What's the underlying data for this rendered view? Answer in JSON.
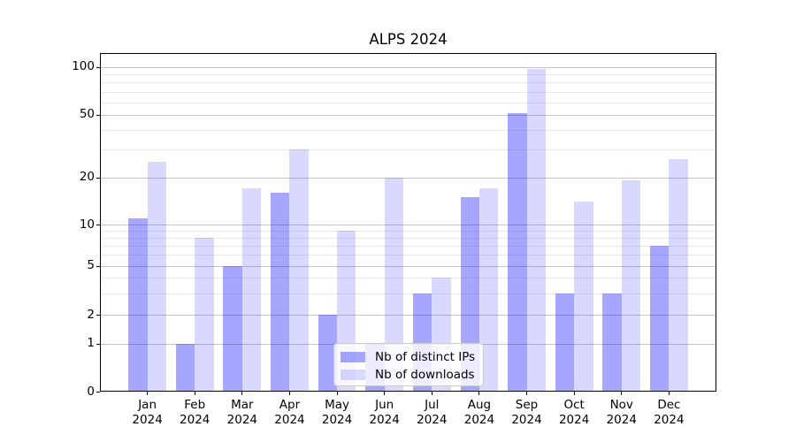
{
  "title": "ALPS 2024",
  "chart_data": {
    "type": "bar",
    "title": "ALPS 2024",
    "yscale": "symlog",
    "grid": "on",
    "legend_position": "lower center",
    "x_tick_months": [
      "Jan",
      "Feb",
      "Mar",
      "Apr",
      "May",
      "Jun",
      "Jul",
      "Aug",
      "Sep",
      "Oct",
      "Nov",
      "Dec"
    ],
    "x_tick_year": "2024",
    "ytick_labels": [
      "0",
      "1",
      "2",
      "5",
      "10",
      "20",
      "50",
      "100"
    ],
    "ytick_values": [
      0,
      1,
      2,
      5,
      10,
      20,
      50,
      100
    ],
    "ylim": [
      0,
      110
    ],
    "series": [
      {
        "name": "Nb of distinct IPs",
        "color": "rgba(0,0,255,0.35)",
        "color_on_white": "#a6a6ff",
        "values": [
          11,
          1,
          5,
          16,
          2,
          1,
          3,
          15,
          51,
          3,
          3,
          7
        ]
      },
      {
        "name": "Nb of downloads",
        "color": "rgba(0,0,255,0.15)",
        "color_on_white": "#d9d9ff",
        "values": [
          25,
          8,
          17,
          30,
          9,
          20,
          4,
          17,
          97,
          14,
          19,
          26
        ]
      }
    ],
    "colors": {
      "grid_major": "#c6c6c6",
      "grid_minor": "#e9e9e9",
      "spine": "#000000",
      "legend_border": "#cccccc"
    }
  }
}
